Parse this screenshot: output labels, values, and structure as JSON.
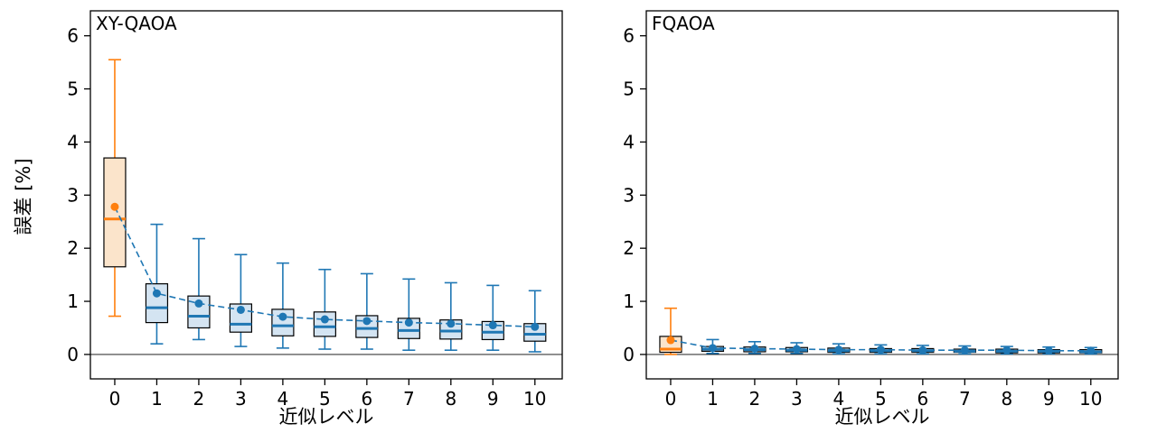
{
  "figure": {
    "background": "#ffffff"
  },
  "colors": {
    "blue": "#1f77b4",
    "blue_fill": "#d4e4f2",
    "orange": "#ff7f0e",
    "orange_fill": "#fbe4cb",
    "box_edge": "#000000",
    "axis": "#000000"
  },
  "chart_data": [
    {
      "type": "boxplot",
      "title": "XY-QAOA",
      "xlabel": "近似レベル",
      "ylabel": "誤差 [%]",
      "x_ticks": [
        0,
        1,
        2,
        3,
        4,
        5,
        6,
        7,
        8,
        9,
        10
      ],
      "y_ticks": [
        0,
        1,
        2,
        3,
        4,
        5,
        6
      ],
      "xlim": [
        -0.58,
        10.65
      ],
      "ylim": [
        -0.46,
        6.47
      ],
      "grid": false,
      "zero_line": true,
      "mean_line_style": "dashed",
      "boxes": [
        {
          "x": 0,
          "series": "orange",
          "whisker_low": 0.72,
          "q1": 1.65,
          "median": 2.55,
          "q3": 3.7,
          "whisker_high": 5.55,
          "mean": 2.78
        },
        {
          "x": 1,
          "series": "blue",
          "whisker_low": 0.2,
          "q1": 0.6,
          "median": 0.88,
          "q3": 1.33,
          "whisker_high": 2.45,
          "mean": 1.15
        },
        {
          "x": 2,
          "series": "blue",
          "whisker_low": 0.28,
          "q1": 0.5,
          "median": 0.72,
          "q3": 1.1,
          "whisker_high": 2.18,
          "mean": 0.96
        },
        {
          "x": 3,
          "series": "blue",
          "whisker_low": 0.15,
          "q1": 0.42,
          "median": 0.57,
          "q3": 0.95,
          "whisker_high": 1.88,
          "mean": 0.84
        },
        {
          "x": 4,
          "series": "blue",
          "whisker_low": 0.12,
          "q1": 0.35,
          "median": 0.54,
          "q3": 0.85,
          "whisker_high": 1.72,
          "mean": 0.71
        },
        {
          "x": 5,
          "series": "blue",
          "whisker_low": 0.1,
          "q1": 0.34,
          "median": 0.52,
          "q3": 0.8,
          "whisker_high": 1.6,
          "mean": 0.66
        },
        {
          "x": 6,
          "series": "blue",
          "whisker_low": 0.1,
          "q1": 0.32,
          "median": 0.49,
          "q3": 0.73,
          "whisker_high": 1.52,
          "mean": 0.63
        },
        {
          "x": 7,
          "series": "blue",
          "whisker_low": 0.08,
          "q1": 0.3,
          "median": 0.45,
          "q3": 0.68,
          "whisker_high": 1.42,
          "mean": 0.6
        },
        {
          "x": 8,
          "series": "blue",
          "whisker_low": 0.08,
          "q1": 0.29,
          "median": 0.44,
          "q3": 0.65,
          "whisker_high": 1.35,
          "mean": 0.58
        },
        {
          "x": 9,
          "series": "blue",
          "whisker_low": 0.08,
          "q1": 0.28,
          "median": 0.42,
          "q3": 0.62,
          "whisker_high": 1.3,
          "mean": 0.55
        },
        {
          "x": 10,
          "series": "blue",
          "whisker_low": 0.05,
          "q1": 0.25,
          "median": 0.38,
          "q3": 0.58,
          "whisker_high": 1.2,
          "mean": 0.52
        }
      ]
    },
    {
      "type": "boxplot",
      "title": "FQAOA",
      "xlabel": "近似レベル",
      "ylabel": "",
      "x_ticks": [
        0,
        1,
        2,
        3,
        4,
        5,
        6,
        7,
        8,
        9,
        10
      ],
      "y_ticks": [
        0,
        1,
        2,
        3,
        4,
        5,
        6
      ],
      "xlim": [
        -0.58,
        10.65
      ],
      "ylim": [
        -0.46,
        6.47
      ],
      "grid": false,
      "zero_line": true,
      "mean_line_style": "dashed",
      "boxes": [
        {
          "x": 0,
          "series": "orange",
          "whisker_low": 0.0,
          "q1": 0.04,
          "median": 0.1,
          "q3": 0.34,
          "whisker_high": 0.87,
          "mean": 0.27
        },
        {
          "x": 1,
          "series": "blue",
          "whisker_low": 0.02,
          "q1": 0.06,
          "median": 0.1,
          "q3": 0.15,
          "whisker_high": 0.28,
          "mean": 0.12
        },
        {
          "x": 2,
          "series": "blue",
          "whisker_low": 0.02,
          "q1": 0.05,
          "median": 0.09,
          "q3": 0.14,
          "whisker_high": 0.24,
          "mean": 0.11
        },
        {
          "x": 3,
          "series": "blue",
          "whisker_low": 0.02,
          "q1": 0.05,
          "median": 0.08,
          "q3": 0.13,
          "whisker_high": 0.22,
          "mean": 0.1
        },
        {
          "x": 4,
          "series": "blue",
          "whisker_low": 0.01,
          "q1": 0.04,
          "median": 0.07,
          "q3": 0.12,
          "whisker_high": 0.2,
          "mean": 0.09
        },
        {
          "x": 5,
          "series": "blue",
          "whisker_low": 0.01,
          "q1": 0.04,
          "median": 0.07,
          "q3": 0.11,
          "whisker_high": 0.18,
          "mean": 0.09
        },
        {
          "x": 6,
          "series": "blue",
          "whisker_low": 0.01,
          "q1": 0.04,
          "median": 0.07,
          "q3": 0.11,
          "whisker_high": 0.17,
          "mean": 0.08
        },
        {
          "x": 7,
          "series": "blue",
          "whisker_low": 0.01,
          "q1": 0.04,
          "median": 0.06,
          "q3": 0.1,
          "whisker_high": 0.16,
          "mean": 0.08
        },
        {
          "x": 8,
          "series": "blue",
          "whisker_low": 0.01,
          "q1": 0.03,
          "median": 0.06,
          "q3": 0.1,
          "whisker_high": 0.15,
          "mean": 0.08
        },
        {
          "x": 9,
          "series": "blue",
          "whisker_low": 0.01,
          "q1": 0.03,
          "median": 0.06,
          "q3": 0.09,
          "whisker_high": 0.14,
          "mean": 0.07
        },
        {
          "x": 10,
          "series": "blue",
          "whisker_low": 0.01,
          "q1": 0.03,
          "median": 0.05,
          "q3": 0.09,
          "whisker_high": 0.13,
          "mean": 0.07
        }
      ]
    }
  ]
}
